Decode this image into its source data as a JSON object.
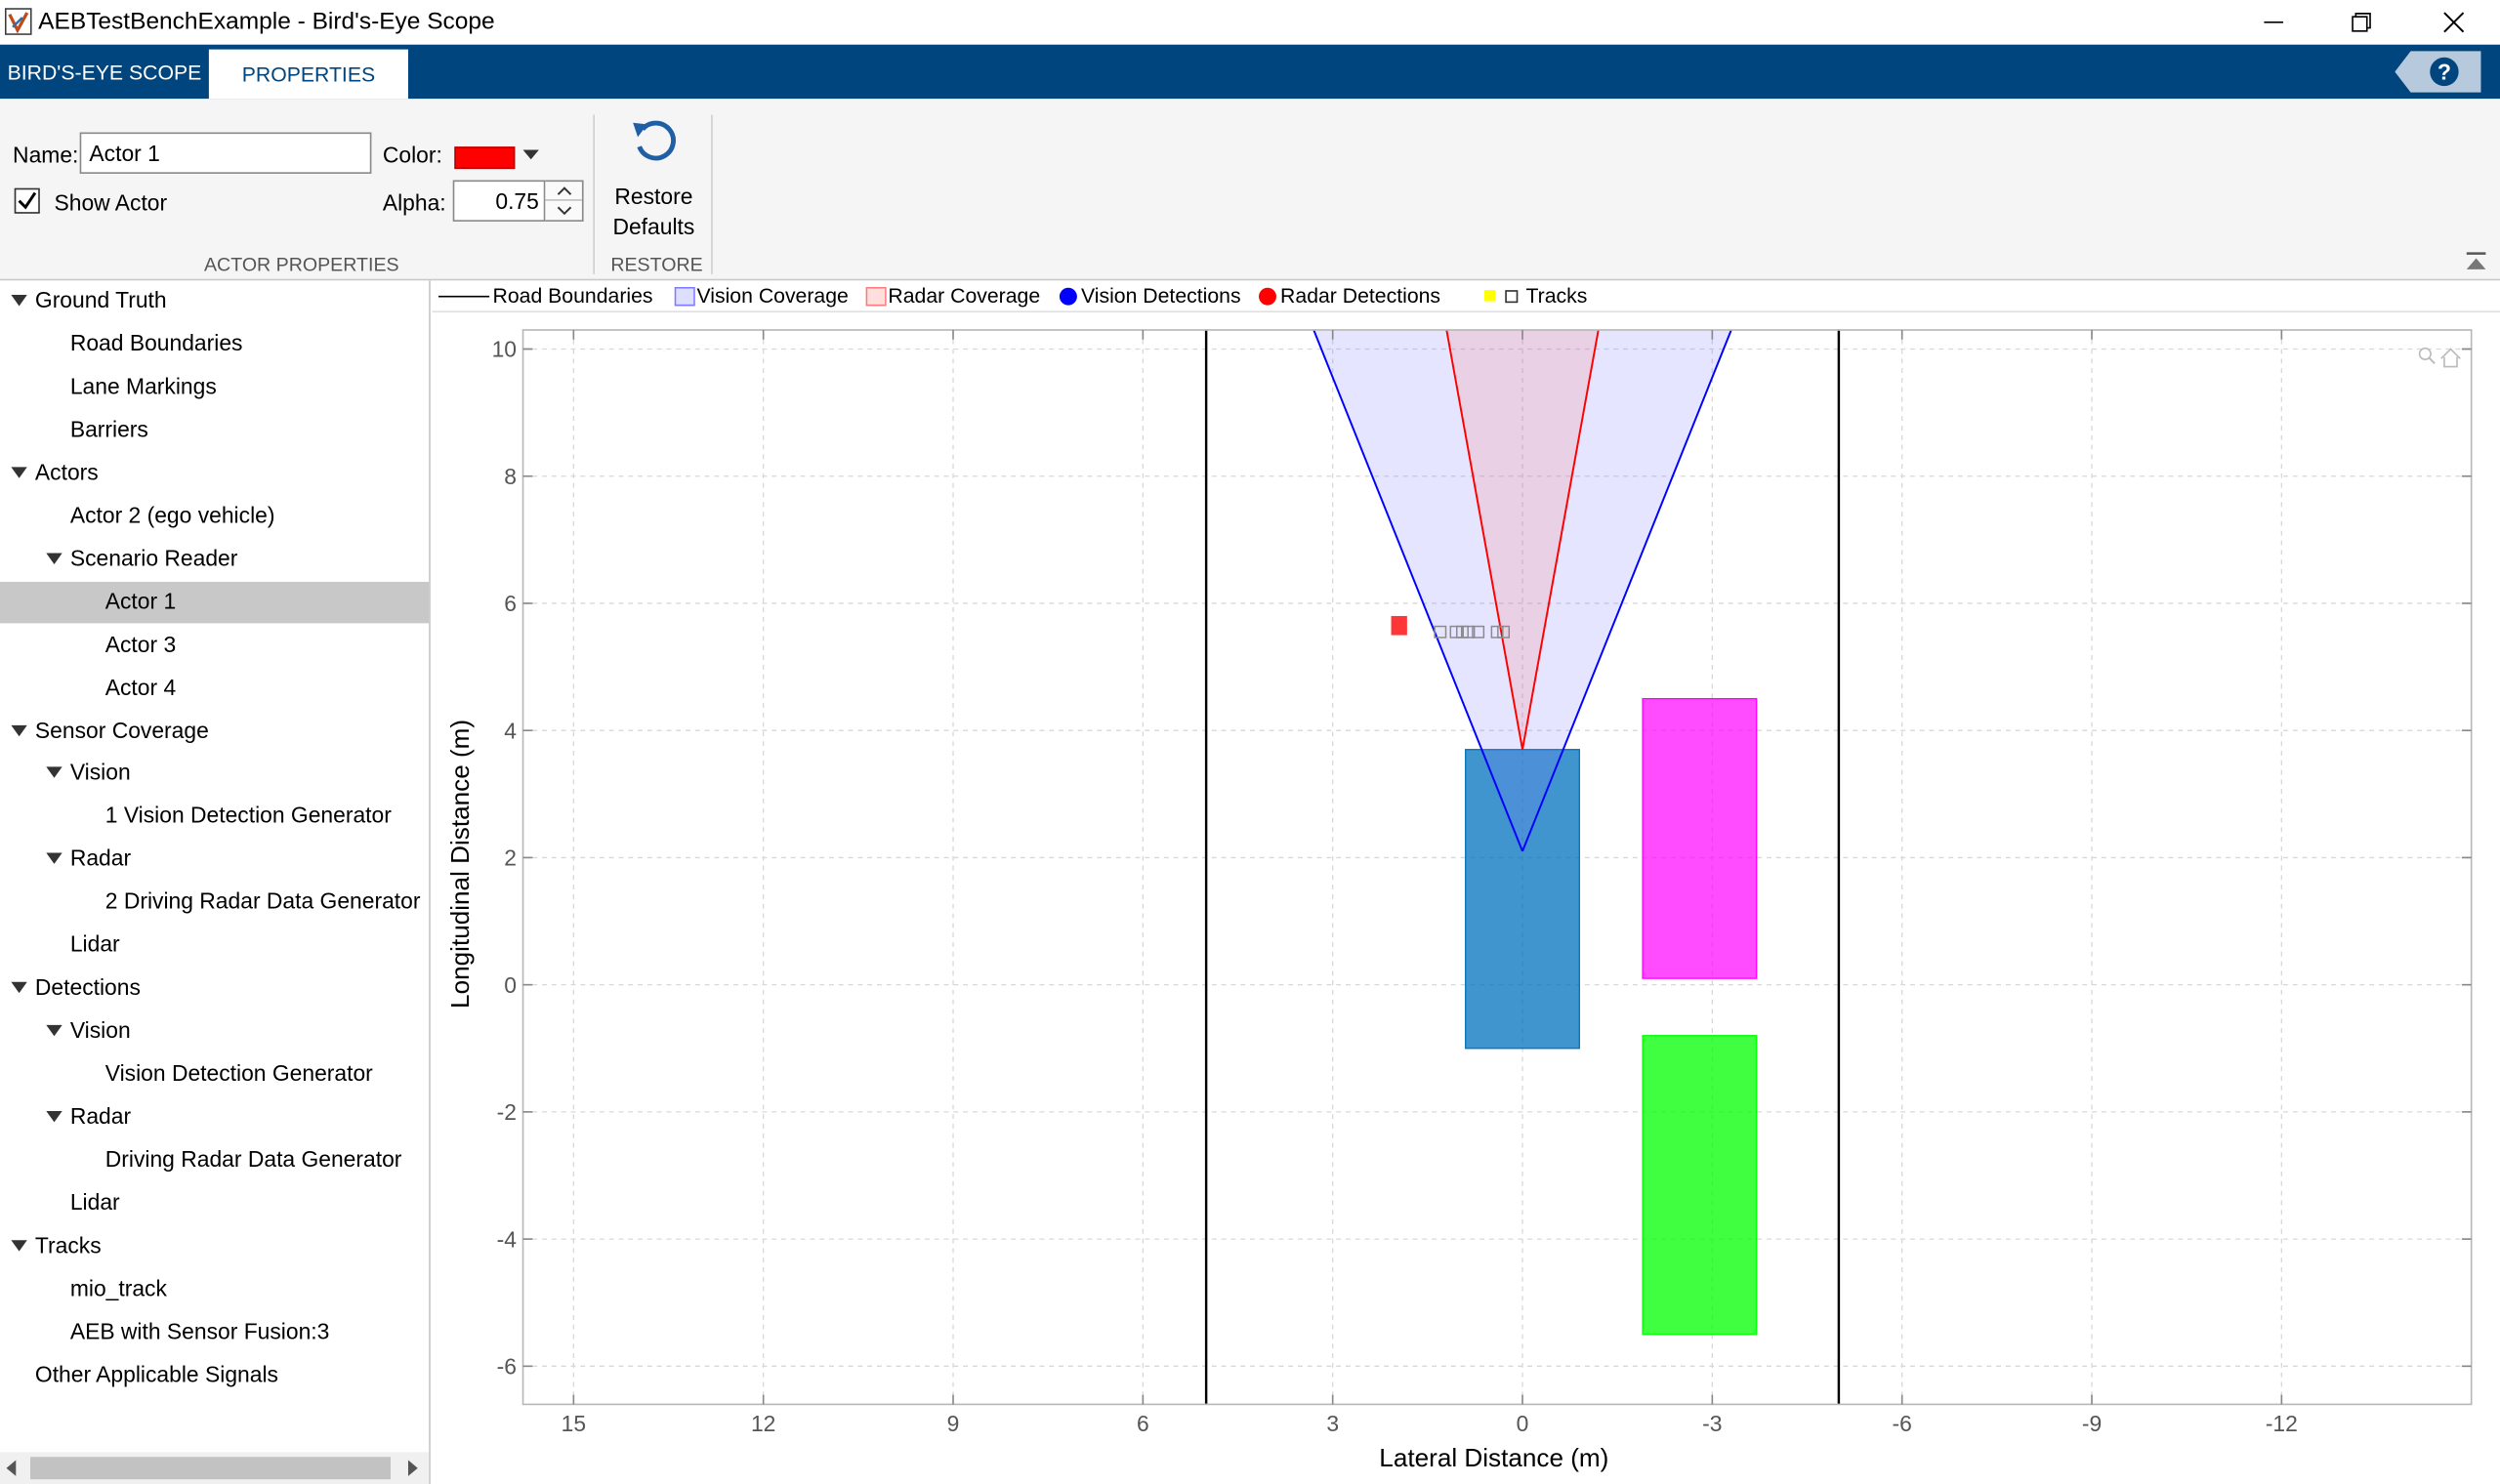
{
  "window": {
    "title": "AEBTestBenchExample - Bird's-Eye Scope"
  },
  "tabs": [
    {
      "label": "BIRD'S-EYE SCOPE",
      "active": false
    },
    {
      "label": "PROPERTIES",
      "active": true
    }
  ],
  "toolstrip": {
    "name_label": "Name:",
    "name_value": "Actor 1",
    "color_label": "Color:",
    "color_value": "#ff0000",
    "show_actor_label": "Show Actor",
    "show_actor_checked": true,
    "alpha_label": "Alpha:",
    "alpha_value": "0.75",
    "section_actor": "ACTOR PROPERTIES",
    "restore_line1": "Restore",
    "restore_line2": "Defaults",
    "section_restore": "RESTORE"
  },
  "tree": [
    {
      "label": "Ground Truth",
      "level": 0,
      "expandable": true
    },
    {
      "label": "Road Boundaries",
      "level": 1,
      "expandable": false
    },
    {
      "label": "Lane Markings",
      "level": 1,
      "expandable": false
    },
    {
      "label": "Barriers",
      "level": 1,
      "expandable": false
    },
    {
      "label": "Actors",
      "level": 0,
      "expandable": true
    },
    {
      "label": "Actor 2 (ego vehicle)",
      "level": 1,
      "expandable": false
    },
    {
      "label": "Scenario Reader",
      "level": 1,
      "expandable": true
    },
    {
      "label": "Actor 1",
      "level": 2,
      "expandable": false,
      "selected": true
    },
    {
      "label": "Actor 3",
      "level": 2,
      "expandable": false
    },
    {
      "label": "Actor 4",
      "level": 2,
      "expandable": false
    },
    {
      "label": "Sensor Coverage",
      "level": 0,
      "expandable": true
    },
    {
      "label": "Vision",
      "level": 1,
      "expandable": true
    },
    {
      "label": "1 Vision Detection Generator",
      "level": 2,
      "expandable": false
    },
    {
      "label": "Radar",
      "level": 1,
      "expandable": true
    },
    {
      "label": "2 Driving Radar Data Generator",
      "level": 2,
      "expandable": false
    },
    {
      "label": "Lidar",
      "level": 1,
      "expandable": false
    },
    {
      "label": "Detections",
      "level": 0,
      "expandable": true
    },
    {
      "label": "Vision",
      "level": 1,
      "expandable": true
    },
    {
      "label": "Vision Detection Generator",
      "level": 2,
      "expandable": false
    },
    {
      "label": "Radar",
      "level": 1,
      "expandable": true
    },
    {
      "label": "Driving Radar Data Generator",
      "level": 2,
      "expandable": false
    },
    {
      "label": "Lidar",
      "level": 1,
      "expandable": false
    },
    {
      "label": "Tracks",
      "level": 0,
      "expandable": true
    },
    {
      "label": "mio_track",
      "level": 1,
      "expandable": false
    },
    {
      "label": "AEB with Sensor Fusion:3",
      "level": 1,
      "expandable": false
    },
    {
      "label": "Other Applicable Signals",
      "level": 0,
      "expandable": false
    }
  ],
  "legend": [
    {
      "label": "Road Boundaries",
      "marker": "line",
      "color": "#000000"
    },
    {
      "label": "Vision Coverage",
      "marker": "patch",
      "color": "#7b7bff"
    },
    {
      "label": "Radar Coverage",
      "marker": "patch",
      "color": "#ff7b7b"
    },
    {
      "label": "Vision Detections",
      "marker": "dot",
      "color": "#0000ff"
    },
    {
      "label": "Radar Detections",
      "marker": "dot",
      "color": "#ff0000"
    },
    {
      "label": "Tracks",
      "marker": "track",
      "color": "#ffff00"
    }
  ],
  "chart_data": {
    "type": "scatter",
    "xlabel": "Lateral Distance (m)",
    "ylabel": "Longitudinal Distance (m)",
    "xlim": [
      15.8,
      -15
    ],
    "ylim": [
      -6.6,
      10.3
    ],
    "x_reversed": true,
    "xticks": [
      15,
      12,
      9,
      6,
      3,
      0,
      -3,
      -6,
      -9,
      -12
    ],
    "xtick_labels": [
      "15",
      "12",
      "9",
      "6",
      "3",
      "0",
      "-3",
      "-6",
      "-9",
      "-12"
    ],
    "yticks": [
      10,
      8,
      6,
      4,
      2,
      0,
      -2,
      -4,
      -6
    ],
    "ytick_labels": [
      "10",
      "8",
      "6",
      "4",
      "2",
      "0",
      "-2",
      "-4",
      "-6"
    ],
    "grid": true,
    "road_boundaries_x": [
      5,
      -5
    ],
    "actors": [
      {
        "name": "Actor 2 (ego vehicle)",
        "color": "#0072bd",
        "alpha": 0.75,
        "x_left": 0.9,
        "x_right": -0.9,
        "y_bottom": -1.0,
        "y_top": 3.7
      },
      {
        "name": "Actor 3",
        "color": "#ff00ff",
        "alpha": 0.7,
        "x_left": -1.9,
        "x_right": -3.7,
        "y_bottom": 0.1,
        "y_top": 4.5
      },
      {
        "name": "Actor 4",
        "color": "#00ff00",
        "alpha": 0.75,
        "x_left": -1.9,
        "x_right": -3.7,
        "y_bottom": -5.5,
        "y_top": -0.8
      }
    ],
    "vision_coverage": {
      "apex": [
        0,
        2.1
      ],
      "left_edge_at_top": 3.3,
      "right_edge_at_top": -3.3,
      "fill": "#7b7bff",
      "edge": "#0000ff"
    },
    "radar_coverage": {
      "apex": [
        0,
        3.7
      ],
      "left_edge_at_top": 1.2,
      "right_edge_at_top": -1.2,
      "fill": "#ff7b7b",
      "edge": "#ff0000"
    },
    "radar_detections": [
      [
        1.95,
        5.65
      ]
    ],
    "tracks": [
      [
        1.3,
        5.55
      ],
      [
        1.05,
        5.55
      ],
      [
        0.95,
        5.55
      ],
      [
        0.85,
        5.55
      ],
      [
        0.7,
        5.55
      ],
      [
        0.4,
        5.55
      ],
      [
        0.3,
        5.55
      ]
    ]
  }
}
